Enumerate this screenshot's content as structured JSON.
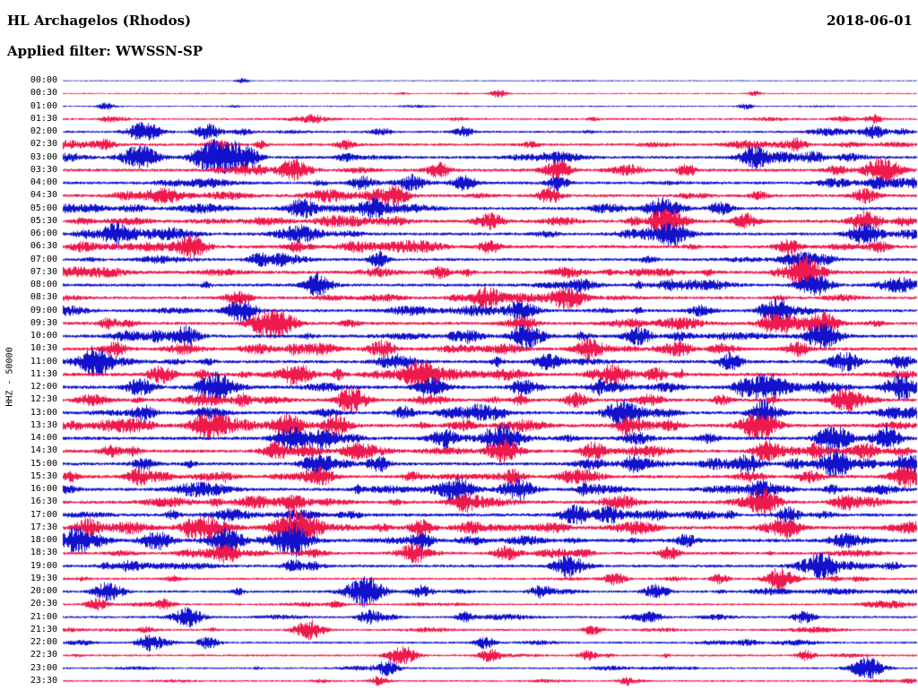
{
  "header": {
    "station": "HL Archagelos (Rhodos)",
    "date": "2018-06-01",
    "filter": "Applied filter: WWSSN-SP"
  },
  "y_axis_label": "HHZ - 50000",
  "colors": {
    "blue": "#1212cc",
    "red": "#ee1a4d",
    "background": "#ffffff",
    "text": "#000000"
  },
  "chart_data": {
    "type": "line",
    "title": "Helicorder day plot, 48 traces of 30 minutes each",
    "ylabel": "HHZ - 50000",
    "minutes_per_row": 30,
    "legend": "off",
    "grid": "off",
    "rows": [
      {
        "time": "00:00",
        "color": "blue",
        "activity": 0.06,
        "events": [
          [
            0.21,
            0.2
          ]
        ]
      },
      {
        "time": "00:30",
        "color": "red",
        "activity": 0.12,
        "events": [
          [
            0.51,
            0.3
          ],
          [
            0.81,
            0.2
          ]
        ]
      },
      {
        "time": "01:00",
        "color": "blue",
        "activity": 0.12,
        "events": [
          [
            0.05,
            0.3
          ],
          [
            0.8,
            0.25
          ]
        ]
      },
      {
        "time": "01:30",
        "color": "red",
        "activity": 0.3,
        "events": [
          [
            0.95,
            0.35
          ]
        ]
      },
      {
        "time": "02:00",
        "color": "blue",
        "activity": 0.35,
        "events": [
          [
            0.095,
            0.85
          ],
          [
            0.17,
            0.65
          ],
          [
            0.47,
            0.4
          ],
          [
            0.95,
            0.55
          ]
        ]
      },
      {
        "time": "02:30",
        "color": "red",
        "activity": 0.45,
        "events": [
          [
            0.18,
            0.5
          ],
          [
            0.33,
            0.4
          ],
          [
            0.86,
            0.35
          ]
        ]
      },
      {
        "time": "03:00",
        "color": "blue",
        "activity": 0.5,
        "events": [
          [
            0.09,
            1.0
          ],
          [
            0.17,
            1.0
          ],
          [
            0.19,
            0.9
          ],
          [
            0.21,
            0.8
          ],
          [
            0.81,
            0.65
          ],
          [
            0.88,
            0.5
          ]
        ]
      },
      {
        "time": "03:30",
        "color": "red",
        "activity": 0.55,
        "events": [
          [
            0.27,
            0.9
          ],
          [
            0.44,
            0.6
          ],
          [
            0.58,
            0.5
          ],
          [
            0.96,
            0.9
          ]
        ]
      },
      {
        "time": "04:00",
        "color": "blue",
        "activity": 0.5,
        "events": [
          [
            0.35,
            0.6
          ],
          [
            0.41,
            0.5
          ],
          [
            0.47,
            0.6
          ],
          [
            0.58,
            0.5
          ]
        ]
      },
      {
        "time": "04:30",
        "color": "red",
        "activity": 0.55,
        "events": [
          [
            0.39,
            0.7
          ],
          [
            0.57,
            0.6
          ],
          [
            0.94,
            0.6
          ]
        ]
      },
      {
        "time": "05:00",
        "color": "blue",
        "activity": 0.55,
        "events": [
          [
            0.28,
            0.6
          ],
          [
            0.36,
            0.6
          ],
          [
            0.7,
            0.8
          ],
          [
            0.77,
            0.5
          ]
        ]
      },
      {
        "time": "05:30",
        "color": "red",
        "activity": 0.6,
        "events": [
          [
            0.5,
            0.7
          ],
          [
            0.71,
            0.9
          ],
          [
            0.8,
            0.6
          ],
          [
            0.94,
            0.8
          ]
        ]
      },
      {
        "time": "06:00",
        "color": "blue",
        "activity": 0.55,
        "events": [
          [
            0.06,
            0.8
          ],
          [
            0.715,
            0.6
          ],
          [
            0.94,
            0.9
          ]
        ]
      },
      {
        "time": "06:30",
        "color": "red",
        "activity": 0.6,
        "events": [
          [
            0.15,
            0.9
          ],
          [
            0.5,
            0.5
          ],
          [
            0.85,
            0.6
          ]
        ]
      },
      {
        "time": "07:00",
        "color": "blue",
        "activity": 0.5,
        "events": [
          [
            0.23,
            0.5
          ],
          [
            0.37,
            0.4
          ],
          [
            0.87,
            0.6
          ]
        ]
      },
      {
        "time": "07:30",
        "color": "red",
        "activity": 0.6,
        "events": [
          [
            0.44,
            0.5
          ],
          [
            0.87,
            1.0
          ]
        ]
      },
      {
        "time": "08:00",
        "color": "blue",
        "activity": 0.55,
        "events": [
          [
            0.295,
            0.6
          ],
          [
            0.88,
            0.9
          ]
        ]
      },
      {
        "time": "08:30",
        "color": "red",
        "activity": 0.5,
        "events": [
          [
            0.205,
            0.6
          ],
          [
            0.5,
            0.7
          ],
          [
            0.595,
            0.8
          ]
        ]
      },
      {
        "time": "09:00",
        "color": "blue",
        "activity": 0.55,
        "events": [
          [
            0.21,
            0.7
          ],
          [
            0.537,
            0.8
          ],
          [
            0.83,
            0.6
          ]
        ]
      },
      {
        "time": "09:30",
        "color": "red",
        "activity": 0.6,
        "events": [
          [
            0.237,
            0.9
          ],
          [
            0.26,
            0.7
          ],
          [
            0.83,
            0.7
          ],
          [
            0.89,
            0.8
          ]
        ]
      },
      {
        "time": "10:00",
        "color": "blue",
        "activity": 0.6,
        "events": [
          [
            0.142,
            0.8
          ],
          [
            0.54,
            0.7
          ],
          [
            0.674,
            0.7
          ],
          [
            0.89,
            1.0
          ]
        ]
      },
      {
        "time": "10:30",
        "color": "red",
        "activity": 0.6,
        "events": [
          [
            0.06,
            0.6
          ],
          [
            0.374,
            0.7
          ],
          [
            0.615,
            0.6
          ],
          [
            0.86,
            0.6
          ]
        ]
      },
      {
        "time": "11:00",
        "color": "blue",
        "activity": 0.6,
        "events": [
          [
            0.04,
            0.8
          ],
          [
            0.568,
            0.7
          ],
          [
            0.916,
            0.8
          ]
        ]
      },
      {
        "time": "11:30",
        "color": "red",
        "activity": 0.65,
        "events": [
          [
            0.116,
            0.7
          ],
          [
            0.274,
            0.8
          ],
          [
            0.416,
            0.9
          ],
          [
            0.64,
            0.7
          ]
        ]
      },
      {
        "time": "12:00",
        "color": "blue",
        "activity": 0.65,
        "events": [
          [
            0.09,
            0.7
          ],
          [
            0.179,
            0.9
          ],
          [
            0.432,
            0.8
          ],
          [
            0.826,
            1.0
          ],
          [
            0.984,
            0.8
          ]
        ]
      },
      {
        "time": "12:30",
        "color": "red",
        "activity": 0.6,
        "events": [
          [
            0.342,
            0.8
          ],
          [
            0.6,
            0.6
          ],
          [
            0.916,
            0.7
          ]
        ]
      },
      {
        "time": "13:00",
        "color": "blue",
        "activity": 0.6,
        "events": [
          [
            0.095,
            0.6
          ],
          [
            0.4,
            0.5
          ],
          [
            0.653,
            0.8
          ],
          [
            0.82,
            0.6
          ]
        ]
      },
      {
        "time": "13:30",
        "color": "red",
        "activity": 0.65,
        "events": [
          [
            0.168,
            0.9
          ],
          [
            0.26,
            0.8
          ],
          [
            0.32,
            0.8
          ],
          [
            0.82,
            0.9
          ]
        ]
      },
      {
        "time": "14:00",
        "color": "blue",
        "activity": 0.65,
        "events": [
          [
            0.268,
            0.9
          ],
          [
            0.305,
            0.8
          ],
          [
            0.516,
            0.7
          ],
          [
            0.905,
            0.8
          ]
        ]
      },
      {
        "time": "14:30",
        "color": "red",
        "activity": 0.6,
        "events": [
          [
            0.25,
            0.7
          ],
          [
            0.516,
            0.9
          ],
          [
            0.62,
            0.6
          ],
          [
            0.826,
            0.8
          ],
          [
            0.94,
            0.7
          ]
        ]
      },
      {
        "time": "15:00",
        "color": "blue",
        "activity": 0.6,
        "events": [
          [
            0.3,
            0.9
          ],
          [
            0.67,
            0.6
          ],
          [
            0.905,
            0.7
          ],
          [
            0.99,
            0.8
          ]
        ]
      },
      {
        "time": "15:30",
        "color": "red",
        "activity": 0.6,
        "events": [
          [
            0.09,
            0.7
          ],
          [
            0.3,
            0.8
          ],
          [
            0.99,
            0.9
          ]
        ]
      },
      {
        "time": "16:00",
        "color": "blue",
        "activity": 0.6,
        "events": [
          [
            0.463,
            0.8
          ],
          [
            0.532,
            0.9
          ],
          [
            0.82,
            0.7
          ]
        ]
      },
      {
        "time": "16:30",
        "color": "red",
        "activity": 0.6,
        "events": [
          [
            0.27,
            0.6
          ],
          [
            0.47,
            0.7
          ],
          [
            0.82,
            0.9
          ],
          [
            0.916,
            0.6
          ]
        ]
      },
      {
        "time": "17:00",
        "color": "blue",
        "activity": 0.6,
        "events": [
          [
            0.6,
            0.8
          ],
          [
            0.64,
            0.7
          ],
          [
            0.85,
            0.6
          ]
        ]
      },
      {
        "time": "17:30",
        "color": "red",
        "activity": 0.7,
        "events": [
          [
            0.03,
            0.7
          ],
          [
            0.263,
            1.0
          ],
          [
            0.284,
            0.9
          ],
          [
            0.42,
            0.6
          ],
          [
            0.85,
            0.7
          ]
        ]
      },
      {
        "time": "18:00",
        "color": "blue",
        "activity": 0.65,
        "events": [
          [
            0.11,
            0.8
          ],
          [
            0.19,
            1.0
          ],
          [
            0.27,
            0.8
          ],
          [
            0.42,
            0.6
          ],
          [
            0.73,
            0.5
          ]
        ]
      },
      {
        "time": "18:30",
        "color": "red",
        "activity": 0.5,
        "events": [
          [
            0.19,
            0.6
          ],
          [
            0.41,
            0.7
          ],
          [
            0.52,
            0.6
          ],
          [
            0.71,
            0.5
          ]
        ]
      },
      {
        "time": "19:00",
        "color": "blue",
        "activity": 0.5,
        "events": [
          [
            0.27,
            0.5
          ],
          [
            0.59,
            0.7
          ],
          [
            0.89,
            0.8
          ]
        ]
      },
      {
        "time": "19:30",
        "color": "red",
        "activity": 0.35,
        "events": [
          [
            0.647,
            0.5
          ],
          [
            0.77,
            0.4
          ],
          [
            0.842,
            0.8
          ]
        ]
      },
      {
        "time": "20:00",
        "color": "blue",
        "activity": 0.4,
        "events": [
          [
            0.053,
            0.8
          ],
          [
            0.358,
            0.9
          ],
          [
            0.42,
            0.5
          ],
          [
            0.56,
            0.5
          ],
          [
            0.695,
            0.6
          ]
        ]
      },
      {
        "time": "20:30",
        "color": "red",
        "activity": 0.3,
        "events": [
          [
            0.04,
            0.5
          ],
          [
            0.12,
            0.4
          ],
          [
            0.32,
            0.3
          ]
        ]
      },
      {
        "time": "21:00",
        "color": "blue",
        "activity": 0.35,
        "events": [
          [
            0.147,
            0.7
          ],
          [
            0.36,
            0.6
          ],
          [
            0.47,
            0.4
          ],
          [
            0.868,
            0.5
          ]
        ]
      },
      {
        "time": "21:30",
        "color": "red",
        "activity": 0.3,
        "events": [
          [
            0.289,
            0.8
          ],
          [
            0.62,
            0.4
          ]
        ]
      },
      {
        "time": "22:00",
        "color": "blue",
        "activity": 0.3,
        "events": [
          [
            0.1,
            0.6
          ],
          [
            0.17,
            0.5
          ],
          [
            0.495,
            0.5
          ]
        ]
      },
      {
        "time": "22:30",
        "color": "red",
        "activity": 0.3,
        "events": [
          [
            0.395,
            0.7
          ],
          [
            0.5,
            0.5
          ],
          [
            0.615,
            0.4
          ],
          [
            0.87,
            0.4
          ]
        ]
      },
      {
        "time": "23:00",
        "color": "blue",
        "activity": 0.25,
        "events": [
          [
            0.379,
            0.6
          ],
          [
            0.942,
            0.9
          ]
        ]
      },
      {
        "time": "23:30",
        "color": "red",
        "activity": 0.25,
        "events": [
          [
            0.37,
            0.4
          ],
          [
            0.66,
            0.3
          ]
        ]
      }
    ]
  }
}
